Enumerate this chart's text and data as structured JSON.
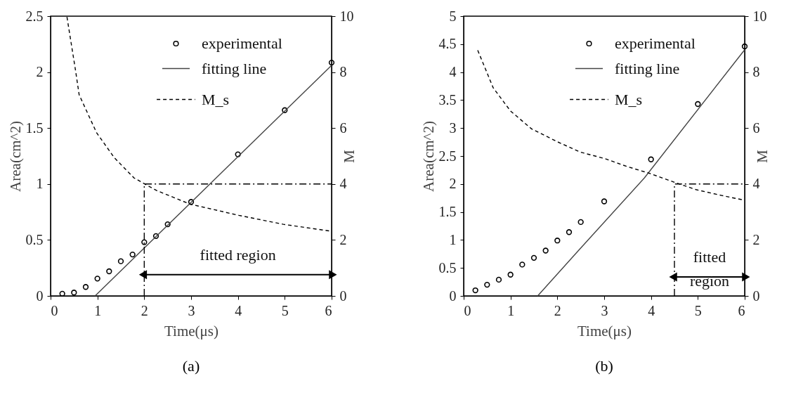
{
  "chart_data": [
    {
      "type": "scatter",
      "title": "(a)",
      "xlabel": "Time(μs)",
      "ylabel": "Area(cm^2)",
      "y2label": "M",
      "xlim": [
        0,
        6
      ],
      "xticks": [
        0,
        1,
        2,
        3,
        4,
        5,
        6
      ],
      "ylim": [
        0,
        2.5
      ],
      "yticks": [
        0,
        0.5,
        1,
        1.5,
        2,
        2.5
      ],
      "y2lim": [
        0,
        10
      ],
      "y2ticks": [
        0,
        2,
        4,
        6,
        8,
        10
      ],
      "grid": false,
      "legend": "top right",
      "series": [
        {
          "name": "experimental",
          "marker": "circle",
          "color": "#000000",
          "x": [
            0.25,
            0.5,
            0.75,
            1,
            1.25,
            1.5,
            1.75,
            2,
            2.25,
            2.5,
            3,
            4,
            5,
            6
          ],
          "values": [
            0.02,
            0.03,
            0.08,
            0.155,
            0.22,
            0.31,
            0.37,
            0.48,
            0.535,
            0.64,
            0.84,
            1.265,
            1.66,
            2.085
          ]
        },
        {
          "name": "fitting line",
          "type": "line",
          "marker": "none",
          "line_style": "solid",
          "color": "#444444",
          "x": [
            0.95,
            6
          ],
          "values": [
            0,
            2.06
          ]
        },
        {
          "name": "M_s",
          "type": "line",
          "marker": "none",
          "line_style": "dashed",
          "axis": "y2",
          "color": "#000000",
          "x": [
            0.35,
            0.53,
            0.61,
            0.98,
            1.36,
            1.78,
            1.97,
            2.26,
            2.98,
            4.02,
            4.97,
            5.96
          ],
          "values": [
            9.97,
            8.09,
            7.19,
            5.84,
            4.94,
            4.22,
            4.04,
            3.77,
            3.28,
            2.88,
            2.56,
            2.32
          ]
        },
        {
          "type": "line",
          "marker": "none",
          "line_style": "dotted",
          "color": "#000000",
          "x": [
            2,
            2,
            6
          ],
          "values": [
            0,
            1,
            1
          ]
        },
        {
          "type": "line",
          "marker": "triangle",
          "line_style": "solid",
          "color": "#000000",
          "x": [
            2,
            6
          ],
          "values": [
            0.19,
            0.19
          ]
        }
      ],
      "annotations": [
        {
          "text": "fitted region",
          "x": 4,
          "y": 0.19
        }
      ]
    },
    {
      "type": "scatter",
      "title": "(b)",
      "xlabel": "Time(μs)",
      "ylabel": "Area(cm^2)",
      "y2label": "M",
      "xlim": [
        0,
        6
      ],
      "xticks": [
        0,
        1,
        2,
        3,
        4,
        5,
        6
      ],
      "ylim": [
        0,
        5
      ],
      "yticks": [
        0,
        0.5,
        1,
        1.5,
        2,
        2.5,
        3,
        3.5,
        4,
        4.5,
        5
      ],
      "y2lim": [
        0,
        10
      ],
      "y2ticks": [
        0,
        2,
        4,
        6,
        8,
        10
      ],
      "grid": false,
      "legend": "top right",
      "series": [
        {
          "name": "experimental",
          "marker": "circle",
          "color": "#000000",
          "x": [
            0.25,
            0.5,
            0.75,
            1,
            1.25,
            1.5,
            1.75,
            2,
            2.25,
            2.5,
            3,
            4,
            5,
            6
          ],
          "values": [
            0.1,
            0.2,
            0.29,
            0.38,
            0.56,
            0.68,
            0.81,
            0.99,
            1.14,
            1.32,
            1.69,
            2.44,
            3.43,
            4.46
          ]
        },
        {
          "name": "fitting line",
          "type": "line",
          "marker": "none",
          "line_style": "solid",
          "color": "#444444",
          "x": [
            1.58,
            2.44,
            3.86,
            6
          ],
          "values": [
            0,
            0.8,
            2.11,
            4.4
          ]
        },
        {
          "name": "M_s",
          "type": "line",
          "marker": "none",
          "line_style": "dashed",
          "axis": "y2",
          "color": "#000000",
          "x": [
            0.3,
            0.5,
            0.63,
            1,
            1.45,
            2,
            2.49,
            3.01,
            3.48,
            3.97,
            4.52,
            4.96,
            5.51,
            5.97
          ],
          "values": [
            8.78,
            7.97,
            7.44,
            6.61,
            5.97,
            5.51,
            5.14,
            4.91,
            4.63,
            4.38,
            4.05,
            3.8,
            3.59,
            3.43
          ]
        },
        {
          "type": "line",
          "marker": "none",
          "line_style": "dotted",
          "color": "#000000",
          "x": [
            4.5,
            4.5,
            6
          ],
          "values": [
            0,
            2,
            2
          ]
        },
        {
          "type": "line",
          "marker": "triangle",
          "line_style": "solid",
          "color": "#000000",
          "x": [
            4.5,
            6
          ],
          "values": [
            0.34,
            0.34
          ]
        }
      ],
      "annotations": [
        {
          "text": "fitted region",
          "x": 5.25,
          "y": 0.34
        }
      ]
    }
  ]
}
